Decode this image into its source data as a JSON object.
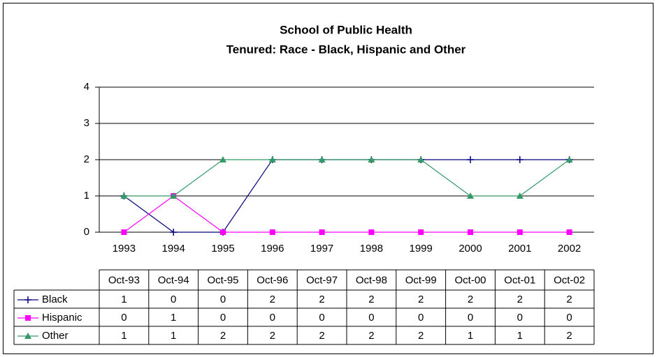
{
  "chart_data": {
    "type": "line",
    "title": "School of Public Health",
    "subtitle": "Tenured: Race - Black, Hispanic and Other",
    "categories": [
      "1993",
      "1994",
      "1995",
      "1996",
      "1997",
      "1998",
      "1999",
      "2000",
      "2001",
      "2002"
    ],
    "table_header": [
      "Oct-93",
      "Oct-94",
      "Oct-95",
      "Oct-96",
      "Oct-97",
      "Oct-98",
      "Oct-99",
      "Oct-00",
      "Oct-01",
      "Oct-02"
    ],
    "series": [
      {
        "name": "Black",
        "color": "#000080",
        "marker": "plus",
        "values": [
          1,
          0,
          0,
          2,
          2,
          2,
          2,
          2,
          2,
          2
        ]
      },
      {
        "name": "Hispanic",
        "color": "#ff00ff",
        "marker": "square",
        "values": [
          0,
          1,
          0,
          0,
          0,
          0,
          0,
          0,
          0,
          0
        ]
      },
      {
        "name": "Other",
        "color": "#339966",
        "marker": "triangle",
        "values": [
          1,
          1,
          2,
          2,
          2,
          2,
          2,
          1,
          1,
          2
        ]
      }
    ],
    "ylim": [
      0,
      4
    ],
    "yticks": [
      0,
      1,
      2,
      3,
      4
    ],
    "grid": true
  }
}
